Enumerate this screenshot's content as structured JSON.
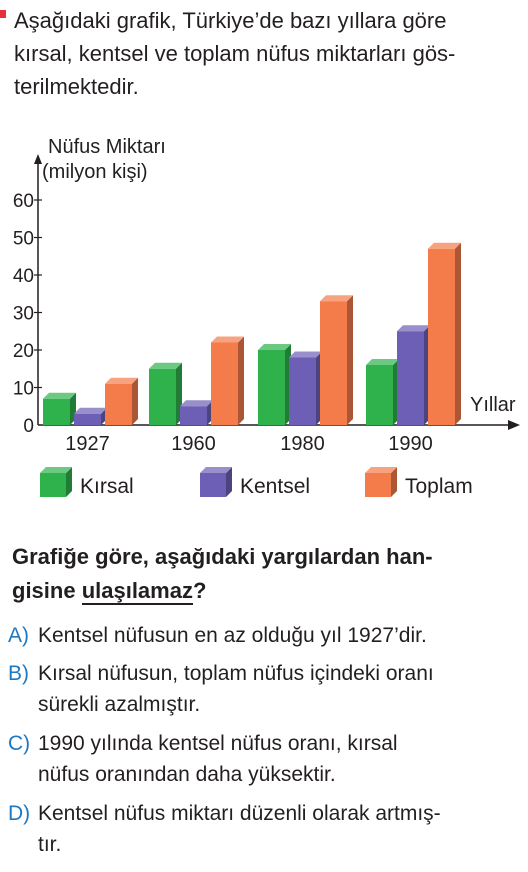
{
  "intro": {
    "lines": [
      "Aşağıdaki grafik, Türkiye’de bazı yıllara göre",
      "kırsal, kentsel ve toplam nüfus miktarları gös-",
      "terilmektedir."
    ]
  },
  "chart_data": {
    "type": "bar",
    "style": "3d",
    "ylabel_lines": [
      "Nüfus Miktarı",
      "(milyon kişi)"
    ],
    "xlabel": "Yıllar",
    "categories": [
      "1927",
      "1960",
      "1980",
      "1990"
    ],
    "yticks": [
      "60",
      "50",
      "40",
      "30",
      "20",
      "10",
      "0"
    ],
    "ylim": [
      0,
      60
    ],
    "series": [
      {
        "name": "Kırsal",
        "values": [
          7,
          15,
          20,
          16
        ],
        "color": "#2fb24c"
      },
      {
        "name": "Kentsel",
        "values": [
          3,
          5,
          18,
          25
        ],
        "color": "#6c5fb5"
      },
      {
        "name": "Toplam",
        "values": [
          11,
          22,
          33,
          47
        ],
        "color": "#f47b4a"
      }
    ]
  },
  "question": {
    "line1": "Grafiğe göre, aşağıdaki yargılardan han-",
    "line2_prefix": "gisine ",
    "line2_underlined": "ulaşılamaz",
    "line2_suffix": "?"
  },
  "options": [
    {
      "letter": "A)",
      "lines": [
        "Kentsel nüfusun en az olduğu yıl 1927’dir."
      ]
    },
    {
      "letter": "B)",
      "lines": [
        "Kırsal nüfusun, toplam nüfus içindeki oranı",
        "sürekli azalmıştır."
      ]
    },
    {
      "letter": "C)",
      "lines": [
        "1990 yılında kentsel nüfus oranı, kırsal",
        "nüfus oranından daha yüksektir."
      ]
    },
    {
      "letter": "D)",
      "lines": [
        "Kentsel nüfus miktarı düzenli olarak artmış-",
        "tır."
      ]
    }
  ]
}
